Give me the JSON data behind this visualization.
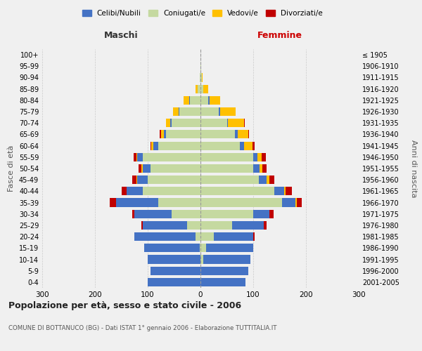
{
  "age_groups": [
    "0-4",
    "5-9",
    "10-14",
    "15-19",
    "20-24",
    "25-29",
    "30-34",
    "35-39",
    "40-44",
    "45-49",
    "50-54",
    "55-59",
    "60-64",
    "65-69",
    "70-74",
    "75-79",
    "80-84",
    "85-89",
    "90-94",
    "95-99",
    "100+"
  ],
  "birth_years": [
    "2001-2005",
    "1996-2000",
    "1991-1995",
    "1986-1990",
    "1981-1985",
    "1976-1980",
    "1971-1975",
    "1966-1970",
    "1961-1965",
    "1956-1960",
    "1951-1955",
    "1946-1950",
    "1941-1945",
    "1936-1940",
    "1931-1935",
    "1926-1930",
    "1921-1925",
    "1916-1920",
    "1911-1915",
    "1906-1910",
    "≤ 1905"
  ],
  "males": {
    "celibe": [
      100,
      95,
      100,
      105,
      115,
      85,
      70,
      80,
      30,
      20,
      15,
      10,
      10,
      5,
      2,
      2,
      2,
      0,
      0,
      0,
      0
    ],
    "coniugato": [
      0,
      0,
      0,
      2,
      10,
      25,
      55,
      80,
      110,
      100,
      95,
      110,
      80,
      65,
      55,
      40,
      20,
      5,
      2,
      0,
      0
    ],
    "vedovo": [
      0,
      0,
      0,
      0,
      0,
      0,
      0,
      0,
      0,
      2,
      2,
      2,
      3,
      5,
      8,
      10,
      10,
      5,
      0,
      0,
      0
    ],
    "divorziato": [
      0,
      0,
      0,
      0,
      0,
      2,
      5,
      12,
      10,
      8,
      5,
      5,
      2,
      2,
      0,
      0,
      0,
      0,
      0,
      0,
      0
    ]
  },
  "females": {
    "nubile": [
      85,
      90,
      90,
      90,
      75,
      60,
      30,
      25,
      18,
      15,
      12,
      8,
      8,
      5,
      2,
      2,
      2,
      0,
      0,
      0,
      0
    ],
    "coniugata": [
      0,
      0,
      5,
      10,
      25,
      60,
      100,
      155,
      140,
      110,
      100,
      100,
      75,
      65,
      50,
      35,
      15,
      5,
      2,
      1,
      0
    ],
    "vedova": [
      0,
      0,
      0,
      0,
      0,
      0,
      0,
      2,
      3,
      5,
      5,
      8,
      15,
      20,
      30,
      30,
      20,
      10,
      2,
      0,
      0
    ],
    "divorziata": [
      0,
      0,
      0,
      0,
      2,
      5,
      8,
      10,
      12,
      10,
      8,
      8,
      5,
      2,
      2,
      0,
      0,
      0,
      0,
      0,
      0
    ]
  },
  "colors": {
    "celibe": "#4472c4",
    "coniugato": "#c5d9a0",
    "vedovo": "#ffc000",
    "divorziato": "#c00000"
  },
  "legend_labels": [
    "Celibi/Nubili",
    "Coniugati/e",
    "Vedovi/e",
    "Divorziati/e"
  ],
  "title": "Popolazione per età, sesso e stato civile - 2006",
  "subtitle": "COMUNE DI BOTTANUCO (BG) - Dati ISTAT 1° gennaio 2006 - Elaborazione TUTTITALIA.IT",
  "xlabel_left": "Maschi",
  "xlabel_right": "Femmine",
  "ylabel_left": "Fasce di età",
  "ylabel_right": "Anni di nascita",
  "xlim": 300,
  "bg_color": "#f0f0f0"
}
